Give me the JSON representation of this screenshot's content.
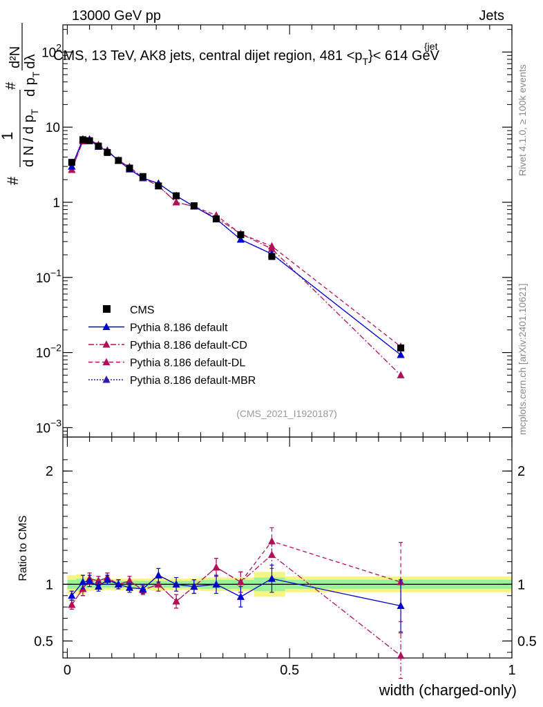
{
  "header": {
    "left": "13000 GeV pp",
    "right": "Jets",
    "title_main": "CMS, 13 TeV, AK8 jets, central dijet region, 481 <p",
    "title_sub": "T",
    "title_sup": "{jet",
    "title_tail": "}< 614 GeV"
  },
  "side_labels": {
    "rivet": "Rivet 4.1.0, ≥ 100k events",
    "mcplots": "mcplots.cern.ch [arXiv:2401.10621]"
  },
  "analysis_id": "(CMS_2021_I1920187)",
  "colors": {
    "cms": "#000000",
    "default": "#0000cc",
    "cd": "#b0105a",
    "dl": "#b0105a",
    "mbr": "#2a1ab0",
    "band_green": "#99f299",
    "band_yellow": "#f5f584"
  },
  "chart_data": [
    {
      "type": "scatter",
      "scale": "log",
      "ylabel": "# 1 / dN/dp_T # d²N / dp_T dλ",
      "ylabel_num": "1",
      "ylabel_den": "d N / d p",
      "ylabel_den_sub": "T",
      "ylabel_hash": "#",
      "ylabel_right_num": "d²N",
      "ylabel_right_den": "d p",
      "ylabel_right_den_sub": "T",
      "ylabel_right_den_tail": "dλ",
      "ylim": [
        0.00075,
        230
      ],
      "xlim": [
        -0.01,
        1.0
      ],
      "yticks": [
        {
          "value": 0.001,
          "label": "10",
          "sup": "−3"
        },
        {
          "value": 0.01,
          "label": "10",
          "sup": "−2"
        },
        {
          "value": 0.1,
          "label": "10",
          "sup": "−1"
        },
        {
          "value": 1,
          "label": "1",
          "sup": ""
        },
        {
          "value": 10,
          "label": "10",
          "sup": ""
        },
        {
          "value": 100,
          "label": "10",
          "sup": "2"
        }
      ],
      "x": [
        0.01,
        0.035,
        0.05,
        0.07,
        0.09,
        0.115,
        0.14,
        0.17,
        0.205,
        0.245,
        0.285,
        0.335,
        0.39,
        0.46,
        0.75
      ],
      "series": [
        {
          "name": "CMS",
          "marker": "square",
          "style": "none",
          "values": [
            3.4,
            6.8,
            6.6,
            5.6,
            4.6,
            3.6,
            2.85,
            2.2,
            1.65,
            1.22,
            0.9,
            0.6,
            0.37,
            0.19,
            0.0115
          ]
        },
        {
          "name": "Pythia 8.186 default",
          "marker": "triangle",
          "style": "solid",
          "values": [
            3.0,
            6.9,
            6.8,
            5.5,
            4.8,
            3.6,
            2.75,
            2.1,
            1.78,
            1.22,
            0.88,
            0.6,
            0.32,
            0.205,
            0.0093
          ]
        },
        {
          "name": "Pythia 8.186 default-CD",
          "marker": "triangle",
          "style": "dashdot",
          "values": [
            2.7,
            6.5,
            6.9,
            5.8,
            4.9,
            3.6,
            2.95,
            2.1,
            1.65,
            1.0,
            0.88,
            0.62,
            0.38,
            0.24,
            0.005
          ]
        },
        {
          "name": "Pythia 8.186 default-DL",
          "marker": "triangle",
          "style": "dash",
          "values": [
            2.7,
            6.5,
            6.9,
            5.8,
            4.9,
            3.6,
            2.95,
            2.1,
            1.65,
            1.0,
            0.88,
            0.67,
            0.38,
            0.26,
            0.012
          ]
        },
        {
          "name": "Pythia 8.186 default-MBR",
          "marker": "triangle",
          "style": "dot",
          "values": [
            3.0,
            6.9,
            6.8,
            5.5,
            4.8,
            3.6,
            2.75,
            2.1,
            1.78,
            1.22,
            0.88,
            0.6,
            0.32,
            0.205,
            0.0093
          ]
        }
      ]
    },
    {
      "type": "scatter",
      "ylabel": "Ratio to CMS",
      "xlabel": "width (charged-only)",
      "ylim": [
        0.35,
        2.3
      ],
      "xlim": [
        -0.01,
        1.0
      ],
      "yticks": [
        {
          "value": 0.5,
          "label": "0.5"
        },
        {
          "value": 1,
          "label": "1"
        },
        {
          "value": 2,
          "label": "2"
        }
      ],
      "xticks": [
        {
          "value": 0,
          "label": "0"
        },
        {
          "value": 0.5,
          "label": "0.5"
        },
        {
          "value": 1,
          "label": "1"
        }
      ],
      "bins": [
        {
          "lo": 0.0,
          "hi": 0.02,
          "green": 0.04,
          "yellow": 0.08
        },
        {
          "lo": 0.02,
          "hi": 0.04,
          "green": 0.05,
          "yellow": 0.09
        },
        {
          "lo": 0.04,
          "hi": 0.06,
          "green": 0.03,
          "yellow": 0.06
        },
        {
          "lo": 0.06,
          "hi": 0.08,
          "green": 0.03,
          "yellow": 0.05
        },
        {
          "lo": 0.08,
          "hi": 0.1,
          "green": 0.03,
          "yellow": 0.05
        },
        {
          "lo": 0.1,
          "hi": 0.13,
          "green": 0.03,
          "yellow": 0.05
        },
        {
          "lo": 0.13,
          "hi": 0.15,
          "green": 0.03,
          "yellow": 0.05
        },
        {
          "lo": 0.15,
          "hi": 0.19,
          "green": 0.03,
          "yellow": 0.05
        },
        {
          "lo": 0.19,
          "hi": 0.22,
          "green": 0.03,
          "yellow": 0.06
        },
        {
          "lo": 0.22,
          "hi": 0.27,
          "green": 0.03,
          "yellow": 0.05
        },
        {
          "lo": 0.27,
          "hi": 0.3,
          "green": 0.03,
          "yellow": 0.05
        },
        {
          "lo": 0.3,
          "hi": 0.37,
          "green": 0.04,
          "yellow": 0.06
        },
        {
          "lo": 0.37,
          "hi": 0.42,
          "green": 0.04,
          "yellow": 0.06
        },
        {
          "lo": 0.42,
          "hi": 0.49,
          "green": 0.06,
          "yellow": 0.11
        },
        {
          "lo": 0.49,
          "hi": 1.0,
          "green": 0.04,
          "yellow": 0.07
        }
      ],
      "x": [
        0.01,
        0.035,
        0.05,
        0.07,
        0.09,
        0.115,
        0.14,
        0.17,
        0.205,
        0.245,
        0.285,
        0.335,
        0.39,
        0.46,
        0.75
      ],
      "series": [
        {
          "name": "Pythia 8.186 default",
          "style": "solid",
          "values": [
            0.9,
            1.02,
            1.03,
            0.98,
            1.04,
            1.0,
            0.97,
            0.96,
            1.08,
            1.0,
            0.98,
            1.0,
            0.89,
            1.05,
            0.81
          ],
          "err": [
            0.04,
            0.06,
            0.05,
            0.04,
            0.04,
            0.04,
            0.04,
            0.04,
            0.06,
            0.06,
            0.06,
            0.08,
            0.09,
            0.12,
            0.23
          ]
        },
        {
          "name": "Pythia 8.186 default-CD",
          "style": "dashdot",
          "values": [
            0.82,
            0.96,
            1.05,
            1.03,
            1.06,
            1.0,
            1.03,
            0.95,
            1.0,
            0.85,
            0.98,
            1.15,
            1.02,
            1.26,
            0.37
          ],
          "err": [
            0.04,
            0.06,
            0.05,
            0.04,
            0.04,
            0.04,
            0.04,
            0.04,
            0.06,
            0.06,
            0.06,
            0.08,
            0.09,
            0.12,
            0.2
          ]
        },
        {
          "name": "Pythia 8.186 default-DL",
          "style": "dash",
          "values": [
            0.82,
            0.96,
            1.05,
            1.03,
            1.06,
            1.0,
            1.03,
            0.95,
            1.0,
            0.85,
            0.98,
            1.15,
            1.02,
            1.38,
            1.02
          ],
          "err": [
            0.04,
            0.06,
            0.05,
            0.04,
            0.04,
            0.04,
            0.04,
            0.04,
            0.06,
            0.06,
            0.06,
            0.08,
            0.09,
            0.12,
            0.35
          ]
        }
      ]
    }
  ],
  "legend": [
    {
      "label": "CMS"
    },
    {
      "label": "Pythia 8.186 default"
    },
    {
      "label": "Pythia 8.186 default-CD"
    },
    {
      "label": "Pythia 8.186 default-DL"
    },
    {
      "label": "Pythia 8.186 default-MBR"
    }
  ]
}
